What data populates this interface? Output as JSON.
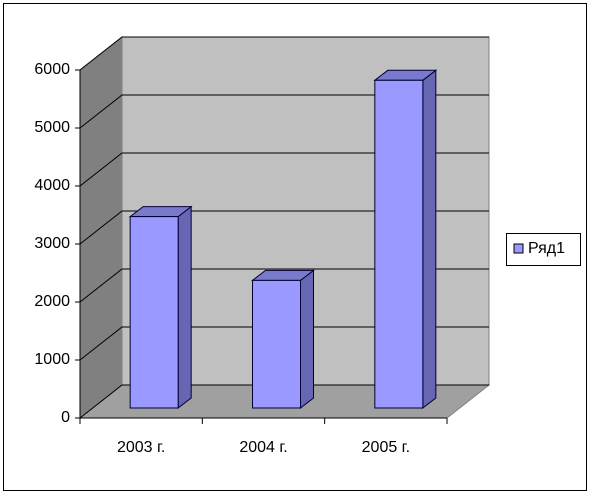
{
  "chart_data": {
    "type": "bar3d",
    "categories": [
      "2003 г.",
      "2004 г.",
      "2005 г."
    ],
    "series": [
      {
        "name": "Ряд1",
        "color": "#9999ff",
        "values": [
          3300,
          2200,
          5650
        ]
      }
    ],
    "ylim": [
      0,
      6000
    ],
    "yticks": [
      0,
      1000,
      2000,
      3000,
      4000,
      5000,
      6000
    ],
    "grid": true,
    "legend": "right"
  }
}
